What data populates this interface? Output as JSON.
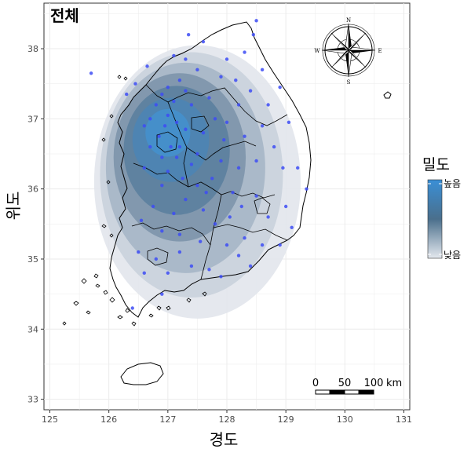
{
  "panel_title": "전체",
  "x_axis_title": "경도",
  "y_axis_title": "위도",
  "x_ticks": [
    "125",
    "126",
    "127",
    "128",
    "129",
    "130",
    "131"
  ],
  "y_ticks": [
    "33",
    "34",
    "35",
    "36",
    "37",
    "38"
  ],
  "legend": {
    "title": "밀도",
    "high_label": "높음",
    "low_label": "낮음",
    "high_color": "#3a8fd6",
    "mid_color": "#4a6f8c",
    "low_color": "#e4e8ee"
  },
  "scale_bar": {
    "labels": [
      "0",
      "50",
      "100"
    ],
    "unit": "km"
  },
  "compass": {
    "n": "N",
    "s": "S",
    "e": "E",
    "w": "W"
  },
  "colors": {
    "point": "#3d4cf5",
    "land_outline": "#000000",
    "grid": "#ebebeb"
  },
  "chart_data": {
    "type": "density-map",
    "xlabel": "경도",
    "ylabel": "위도",
    "xlim": [
      124.9,
      131.1
    ],
    "ylim": [
      32.85,
      38.65
    ],
    "density_levels": [
      {
        "level": 1,
        "center": [
          127.5,
          36.1
        ],
        "rx": 1.75,
        "ry": 1.95,
        "color": "#e2e6ec"
      },
      {
        "level": 2,
        "center": [
          127.4,
          36.2
        ],
        "rx": 1.55,
        "ry": 1.75,
        "color": "#c9d1db"
      },
      {
        "level": 3,
        "center": [
          127.3,
          36.3
        ],
        "rx": 1.35,
        "ry": 1.5,
        "color": "#a6b6c6"
      },
      {
        "level": 4,
        "center": [
          127.2,
          36.45
        ],
        "rx": 1.12,
        "ry": 1.2,
        "color": "#7d95ab"
      },
      {
        "level": 5,
        "center": [
          127.15,
          36.55
        ],
        "rx": 0.9,
        "ry": 0.92,
        "color": "#5b7f9f"
      },
      {
        "level": 6,
        "center": [
          127.05,
          36.7
        ],
        "rx": 0.65,
        "ry": 0.6,
        "color": "#4d84b4"
      },
      {
        "level": 7,
        "center": [
          127.0,
          36.8
        ],
        "rx": 0.38,
        "ry": 0.34,
        "color": "#4590cc"
      }
    ],
    "points": [
      [
        127.2,
        37.55
      ],
      [
        127.0,
        37.45
      ],
      [
        126.9,
        37.35
      ],
      [
        127.1,
        37.25
      ],
      [
        126.8,
        37.2
      ],
      [
        127.3,
        37.4
      ],
      [
        127.4,
        37.2
      ],
      [
        126.7,
        37.0
      ],
      [
        127.0,
        37.05
      ],
      [
        126.95,
        36.9
      ],
      [
        127.15,
        36.95
      ],
      [
        127.3,
        36.85
      ],
      [
        126.85,
        36.75
      ],
      [
        126.7,
        36.6
      ],
      [
        127.05,
        36.6
      ],
      [
        127.2,
        36.6
      ],
      [
        126.9,
        36.45
      ],
      [
        127.15,
        36.45
      ],
      [
        126.6,
        36.3
      ],
      [
        127.4,
        36.35
      ],
      [
        127.0,
        36.25
      ],
      [
        127.25,
        36.15
      ],
      [
        126.9,
        36.05
      ],
      [
        127.5,
        36.5
      ],
      [
        127.6,
        36.8
      ],
      [
        127.8,
        37.0
      ],
      [
        127.7,
        37.3
      ],
      [
        127.9,
        37.6
      ],
      [
        127.5,
        37.7
      ],
      [
        127.3,
        37.85
      ],
      [
        127.1,
        37.9
      ],
      [
        127.6,
        38.1
      ],
      [
        128.0,
        37.85
      ],
      [
        128.3,
        37.95
      ],
      [
        128.6,
        37.7
      ],
      [
        128.9,
        37.45
      ],
      [
        128.4,
        37.4
      ],
      [
        128.2,
        37.2
      ],
      [
        128.7,
        37.2
      ],
      [
        128.0,
        36.95
      ],
      [
        128.3,
        36.75
      ],
      [
        128.6,
        36.9
      ],
      [
        128.8,
        36.6
      ],
      [
        129.2,
        36.3
      ],
      [
        129.35,
        36.0
      ],
      [
        128.5,
        36.4
      ],
      [
        128.2,
        36.3
      ],
      [
        127.9,
        36.4
      ],
      [
        127.75,
        36.15
      ],
      [
        128.1,
        35.95
      ],
      [
        128.5,
        35.9
      ],
      [
        128.7,
        35.6
      ],
      [
        129.0,
        35.75
      ],
      [
        129.1,
        35.45
      ],
      [
        128.9,
        35.2
      ],
      [
        128.6,
        35.2
      ],
      [
        128.3,
        35.3
      ],
      [
        128.0,
        35.2
      ],
      [
        127.8,
        35.5
      ],
      [
        127.6,
        35.7
      ],
      [
        127.3,
        35.85
      ],
      [
        127.1,
        35.65
      ],
      [
        126.9,
        35.4
      ],
      [
        127.2,
        35.1
      ],
      [
        126.8,
        35.0
      ],
      [
        126.5,
        35.1
      ],
      [
        126.6,
        34.8
      ],
      [
        127.0,
        34.8
      ],
      [
        127.4,
        34.9
      ],
      [
        127.7,
        34.85
      ],
      [
        128.2,
        35.05
      ],
      [
        128.4,
        34.9
      ],
      [
        127.9,
        34.75
      ],
      [
        126.9,
        34.5
      ],
      [
        126.4,
        34.3
      ],
      [
        127.2,
        35.35
      ],
      [
        127.55,
        35.25
      ],
      [
        126.6,
        36.9
      ],
      [
        126.45,
        37.5
      ],
      [
        126.65,
        37.75
      ],
      [
        126.3,
        37.35
      ],
      [
        127.5,
        36.05
      ],
      [
        127.95,
        36.7
      ],
      [
        128.15,
        37.55
      ],
      [
        128.45,
        38.2
      ],
      [
        128.5,
        38.4
      ],
      [
        125.7,
        37.65
      ],
      [
        127.35,
        38.2
      ],
      [
        128.95,
        36.3
      ],
      [
        129.05,
        36.95
      ],
      [
        126.55,
        35.55
      ],
      [
        126.75,
        35.75
      ],
      [
        127.65,
        35.95
      ],
      [
        128.05,
        35.6
      ],
      [
        128.25,
        35.75
      ]
    ]
  }
}
